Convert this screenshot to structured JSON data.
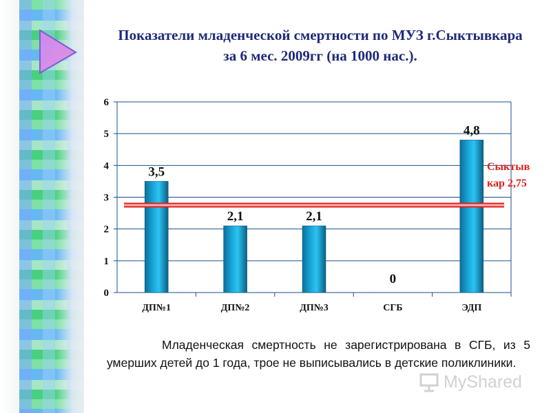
{
  "title": "Показатели младенческой смертности по МУЗ г.Сыктывкара за 6 мес. 2009гг (на 1000 нас.).",
  "chart_data": {
    "type": "bar",
    "title": "Показатели младенческой смертности по МУЗ г.Сыктывкара за 6 мес. 2009гг (на 1000 нас.).",
    "categories": [
      "ДП№1",
      "ДП№2",
      "ДП№3",
      "СГБ",
      "ЭДП"
    ],
    "values": [
      3.5,
      2.1,
      2.1,
      0,
      4.8
    ],
    "value_labels": [
      "3,5",
      "2,1",
      "2,1",
      "0",
      "4,8"
    ],
    "ylim": [
      0,
      6
    ],
    "yticks": [
      0,
      1,
      2,
      3,
      4,
      5,
      6
    ],
    "grid": true,
    "reference_line": {
      "value": 2.75,
      "label": "Сыктыв\nкар 2,75",
      "color": "#e0201a"
    },
    "bar_color": "#1aa6d8",
    "xlabel": "",
    "ylabel": ""
  },
  "caption": "Младенческая смертность не зарегистрирована в СГБ, из 5 умерших детей до 1 года, трое не выписывались в детские поликлиники.",
  "watermark": "MyShared",
  "colors": {
    "title": "#1f2a78",
    "accent_red": "#e0201a"
  }
}
